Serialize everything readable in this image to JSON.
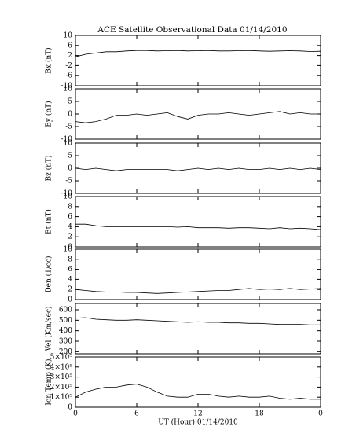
{
  "title": "ACE Satellite Observational Data   01/14/2010",
  "xlabel": "UT (Hour)   01/14/2010",
  "xlim": [
    0,
    24
  ],
  "xticks": [
    0,
    6,
    12,
    18,
    {
      "value": 24,
      "label": "0"
    }
  ],
  "x": [
    0,
    1,
    2,
    3,
    4,
    5,
    6,
    7,
    8,
    9,
    10,
    11,
    12,
    13,
    14,
    15,
    16,
    17,
    18,
    19,
    20,
    21,
    22,
    23,
    24
  ],
  "chart_data": [
    {
      "type": "line",
      "ylabel": "Bx (nT)",
      "ylim": [
        -10,
        10
      ],
      "yticks": [
        -10,
        -6,
        -2,
        2,
        6,
        10
      ],
      "color": "#000000",
      "values": [
        1.5,
        2.5,
        3,
        3.5,
        3.5,
        3.8,
        4,
        4,
        3.8,
        3.9,
        4,
        3.8,
        3.9,
        4,
        3.8,
        3.8,
        3.9,
        4,
        3.8,
        3.7,
        3.8,
        3.9,
        3.8,
        3.6,
        3.7
      ]
    },
    {
      "type": "line",
      "ylabel": "By (nT)",
      "ylim": [
        -10,
        10
      ],
      "yticks": [
        -10,
        -5,
        0,
        5,
        10
      ],
      "color": "#000000",
      "values": [
        -3,
        -3.5,
        -3,
        -2,
        -0.5,
        -0.5,
        0,
        -0.5,
        0,
        0.5,
        -1,
        -2,
        -0.5,
        0,
        0,
        0.5,
        0,
        -0.5,
        0,
        0.5,
        1,
        0,
        0.5,
        0,
        0
      ]
    },
    {
      "type": "line",
      "ylabel": "Bz (nT)",
      "ylim": [
        -10,
        10
      ],
      "yticks": [
        -10,
        -5,
        0,
        5,
        10
      ],
      "color": "#000000",
      "values": [
        0,
        -0.5,
        0,
        -0.5,
        -1,
        -0.5,
        -0.5,
        -0.5,
        -0.5,
        -0.5,
        -1,
        -0.5,
        0,
        -0.5,
        0,
        -0.5,
        0,
        -0.5,
        -0.5,
        0,
        -0.5,
        0,
        -0.5,
        0,
        -0.5
      ]
    },
    {
      "type": "line",
      "ylabel": "Bt (nT)",
      "ylim": [
        0,
        10
      ],
      "yticks": [
        0,
        2,
        4,
        6,
        8,
        10
      ],
      "color": "#000000",
      "values": [
        4.5,
        4.5,
        4.2,
        4,
        4,
        4,
        4,
        4,
        4,
        4,
        3.9,
        4,
        3.8,
        3.8,
        3.8,
        3.7,
        3.8,
        3.8,
        3.7,
        3.6,
        3.8,
        3.6,
        3.7,
        3.6,
        3.4
      ]
    },
    {
      "type": "line",
      "ylabel": "Den (1/cc)",
      "ylim": [
        0,
        10
      ],
      "yticks": [
        0,
        2,
        4,
        6,
        8,
        10
      ],
      "color": "#000000",
      "values": [
        2,
        1.8,
        1.6,
        1.5,
        1.5,
        1.4,
        1.4,
        1.3,
        1.2,
        1.3,
        1.4,
        1.5,
        1.6,
        1.7,
        1.8,
        1.8,
        2,
        2.2,
        2,
        2.1,
        2,
        2.2,
        2,
        2.1,
        2.2
      ]
    },
    {
      "type": "line",
      "ylabel": "Vel (Km/sec)",
      "ylim": [
        180,
        660
      ],
      "yticks": [
        200,
        300,
        400,
        500,
        600
      ],
      "color": "#000000",
      "values": [
        520,
        525,
        510,
        505,
        500,
        500,
        505,
        500,
        495,
        490,
        485,
        480,
        485,
        480,
        480,
        475,
        475,
        470,
        470,
        465,
        460,
        460,
        460,
        455,
        455
      ]
    },
    {
      "type": "line",
      "ylabel": "Ion Temp (K)",
      "ylim": [
        0,
        500000
      ],
      "yticks": [
        0,
        {
          "value": 100000,
          "label": "1×10⁵"
        },
        {
          "value": 200000,
          "label": "2×10⁵"
        },
        {
          "value": 300000,
          "label": "3×10⁵"
        },
        {
          "value": 400000,
          "label": "4×10⁵"
        },
        {
          "value": 500000,
          "label": "5×10⁵"
        }
      ],
      "color": "#000000",
      "values": [
        100000,
        150000,
        180000,
        200000,
        200000,
        220000,
        230000,
        200000,
        150000,
        110000,
        100000,
        100000,
        130000,
        130000,
        110000,
        100000,
        110000,
        100000,
        100000,
        110000,
        90000,
        80000,
        90000,
        80000,
        80000
      ]
    }
  ]
}
